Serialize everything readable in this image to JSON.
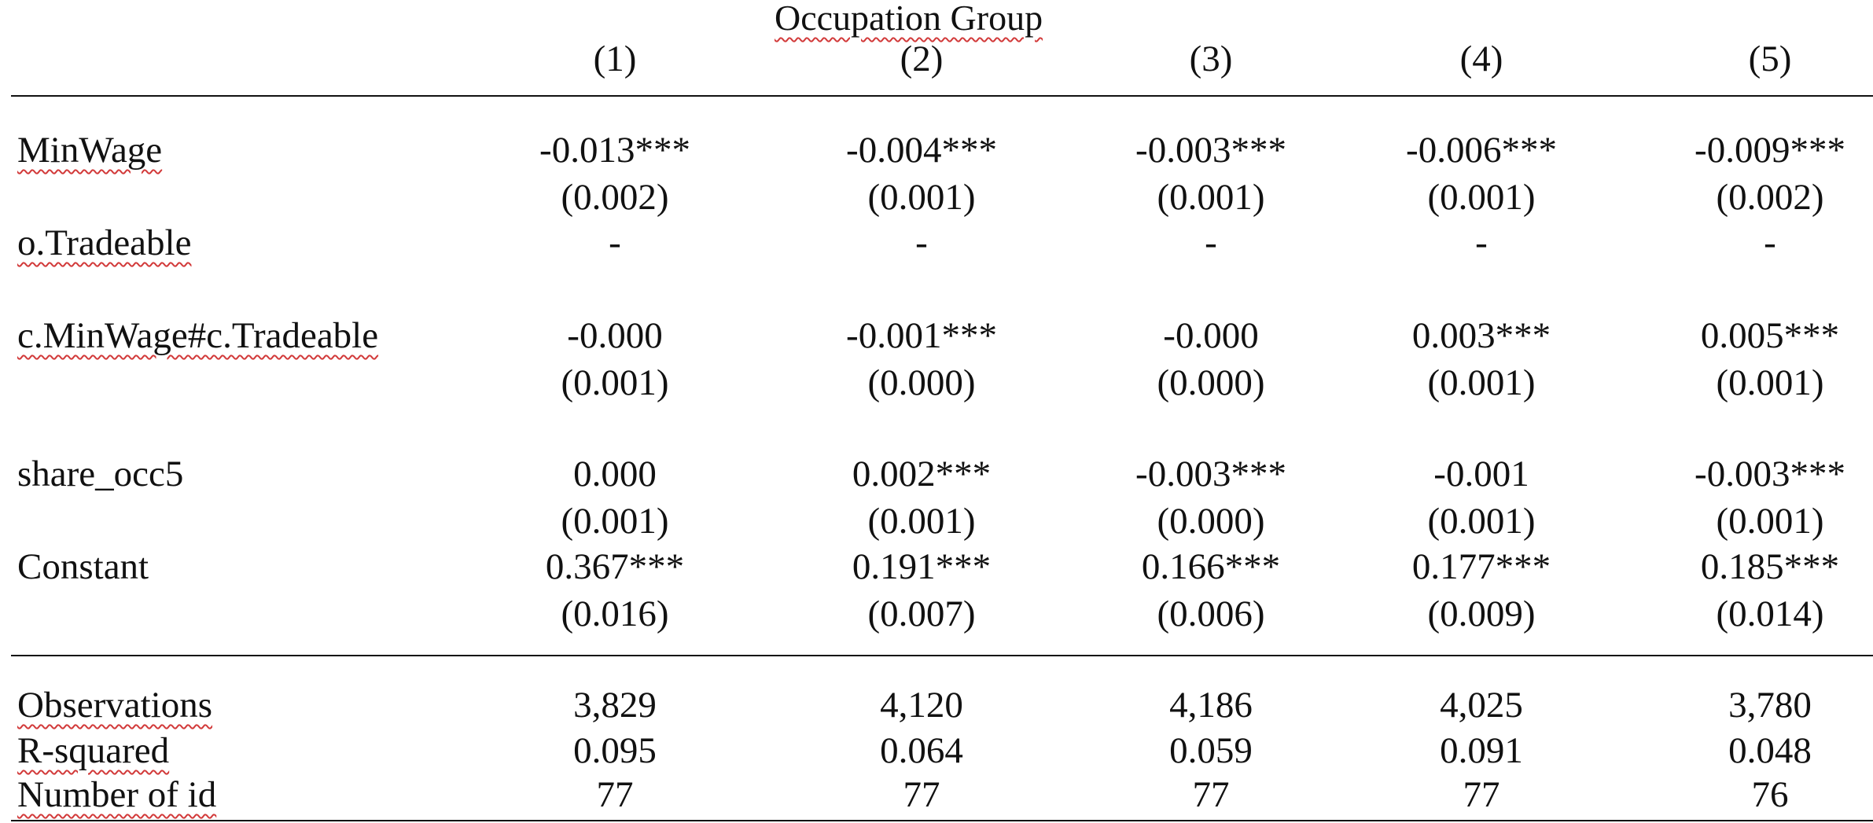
{
  "header": {
    "group_title": "Occupation Group",
    "columns": [
      "(1)",
      "(2)",
      "(3)",
      "(4)",
      "(5)"
    ]
  },
  "rows": [
    {
      "label": "MinWage",
      "coef": [
        "-0.013***",
        "-0.004***",
        "-0.003***",
        "-0.006***",
        "-0.009***"
      ],
      "se": [
        "(0.002)",
        "(0.001)",
        "(0.001)",
        "(0.001)",
        "(0.002)"
      ]
    },
    {
      "label": "o.Tradeable",
      "coef": [
        "-",
        "-",
        "-",
        "-",
        "-"
      ],
      "se": []
    },
    {
      "label": "c.MinWage#c.Tradeable",
      "coef": [
        "-0.000",
        "-0.001***",
        "-0.000",
        "0.003***",
        "0.005***"
      ],
      "se": [
        "(0.001)",
        "(0.000)",
        "(0.000)",
        "(0.001)",
        "(0.001)"
      ]
    },
    {
      "label": "share_occ5",
      "coef": [
        "0.000",
        "0.002***",
        "-0.003***",
        "-0.001",
        "-0.003***"
      ],
      "se": [
        "(0.001)",
        "(0.001)",
        "(0.000)",
        "(0.001)",
        "(0.001)"
      ]
    },
    {
      "label": "Constant",
      "coef": [
        "0.367***",
        "0.191***",
        "0.166***",
        "0.177***",
        "0.185***"
      ],
      "se": [
        "(0.016)",
        "(0.007)",
        "(0.006)",
        "(0.009)",
        "(0.014)"
      ]
    }
  ],
  "stats": [
    {
      "label": "Observations",
      "values": [
        "3,829",
        "4,120",
        "4,186",
        "4,025",
        "3,780"
      ]
    },
    {
      "label": "R-squared",
      "values": [
        "0.095",
        "0.064",
        "0.059",
        "0.091",
        "0.048"
      ]
    },
    {
      "label": "Number of id",
      "values": [
        "77",
        "77",
        "77",
        "77",
        "76"
      ]
    }
  ]
}
